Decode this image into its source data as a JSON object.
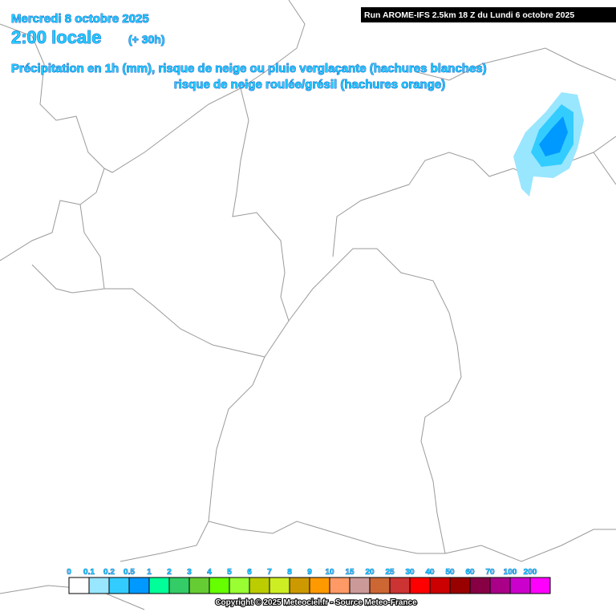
{
  "header": {
    "date": "Mercredi 8 octobre 2025",
    "time": "2:00 locale",
    "lead": "(+ 30h)",
    "line1": "Précipitation en 1h (mm), risque de neige ou pluie verglaçante (hachures blanches)",
    "line2": "risque de neige roulée/grésil (hachures orange)",
    "run": "Run AROME-IFS 2.5km 18 Z du Lundi 6 octobre 2025"
  },
  "legend": {
    "items": [
      {
        "label": "0",
        "color": "#ffffff"
      },
      {
        "label": "0.1",
        "color": "#99e6ff"
      },
      {
        "label": "0.2",
        "color": "#33ccff"
      },
      {
        "label": "0.5",
        "color": "#0099ff"
      },
      {
        "label": "1",
        "color": "#00ff99"
      },
      {
        "label": "2",
        "color": "#33cc66"
      },
      {
        "label": "3",
        "color": "#66cc33"
      },
      {
        "label": "4",
        "color": "#66ff00"
      },
      {
        "label": "5",
        "color": "#99ff33"
      },
      {
        "label": "6",
        "color": "#bbcc00"
      },
      {
        "label": "7",
        "color": "#ccee22"
      },
      {
        "label": "8",
        "color": "#cc9900"
      },
      {
        "label": "9",
        "color": "#ff9900"
      },
      {
        "label": "10",
        "color": "#ff9966"
      },
      {
        "label": "15",
        "color": "#cc9999"
      },
      {
        "label": "20",
        "color": "#cc6633"
      },
      {
        "label": "25",
        "color": "#cc3333"
      },
      {
        "label": "30",
        "color": "#ff0000"
      },
      {
        "label": "40",
        "color": "#cc0000"
      },
      {
        "label": "50",
        "color": "#990000"
      },
      {
        "label": "60",
        "color": "#880044"
      },
      {
        "label": "70",
        "color": "#aa0088"
      },
      {
        "label": "100",
        "color": "#cc00cc"
      },
      {
        "label": "200",
        "color": "#ff00ff"
      }
    ]
  },
  "footer": {
    "copyright": "Copyright © 2025 Meteociel.fr - Source Meteo-France"
  }
}
